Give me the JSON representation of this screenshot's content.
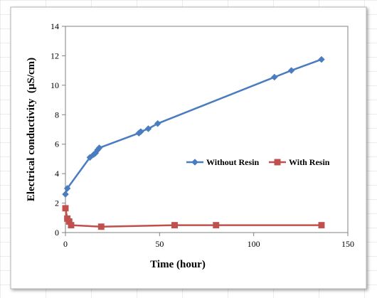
{
  "chart_data": {
    "type": "line",
    "xlabel": "Time (hour)",
    "ylabel": "Electrical conductivity  (µS/cm)",
    "xlim": [
      0,
      150
    ],
    "ylim": [
      0,
      14
    ],
    "x_ticks": [
      "0",
      "50",
      "100",
      "150"
    ],
    "y_ticks": [
      "0",
      "2",
      "4",
      "6",
      "8",
      "10",
      "12",
      "14"
    ],
    "grid": false,
    "legend_position": "right-middle",
    "series": [
      {
        "name": "Without Resin",
        "color": "#4a7cc0",
        "marker": "diamond",
        "points": [
          [
            0,
            2.6
          ],
          [
            1,
            3.0
          ],
          [
            13,
            5.1
          ],
          [
            15,
            5.3
          ],
          [
            16,
            5.4
          ],
          [
            17,
            5.6
          ],
          [
            18,
            5.75
          ],
          [
            39,
            6.75
          ],
          [
            40,
            6.85
          ],
          [
            44,
            7.05
          ],
          [
            49,
            7.4
          ],
          [
            111,
            10.55
          ],
          [
            120,
            11.0
          ],
          [
            136,
            11.75
          ]
        ]
      },
      {
        "name": "With Resin",
        "color": "#c0504d",
        "marker": "square",
        "points": [
          [
            0,
            1.65
          ],
          [
            1,
            0.95
          ],
          [
            2,
            0.75
          ],
          [
            3,
            0.5
          ],
          [
            19,
            0.4
          ],
          [
            58,
            0.5
          ],
          [
            80,
            0.5
          ],
          [
            136,
            0.5
          ]
        ]
      }
    ]
  }
}
